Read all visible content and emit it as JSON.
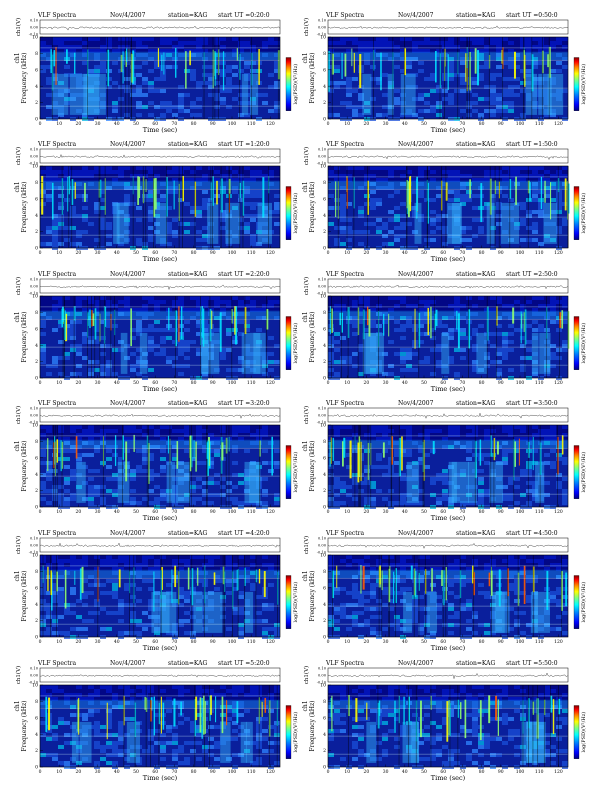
{
  "figure": {
    "app_title": "VLF Spectra",
    "date": "Nov/4/2007",
    "station": "station=KAG",
    "start_prefix": "start  UT =",
    "top_ylabel": "ch1(V)",
    "spec_ylabel": "Frequency (kHz)",
    "spec_ylabel_side": "ch1",
    "xlabel": "Time (sec)",
    "colorbar_label": "log(PSD)(V²/Hz)"
  },
  "chart_data": [
    {
      "type": "heatmap",
      "panel": 1,
      "start_ut": "0:20:0",
      "title": "VLF Spectra  Nov/4/2007  station=KAG  start UT =0:20:0",
      "xlabel": "Time (sec)",
      "ylabel": "Frequency (kHz)",
      "xlim": [
        0,
        125
      ],
      "ylim": [
        0,
        10
      ],
      "xticks": [
        0,
        10,
        20,
        30,
        40,
        50,
        60,
        70,
        80,
        90,
        100,
        110,
        120
      ],
      "yticks": [
        0,
        2,
        4,
        6,
        8,
        10
      ],
      "top_trace": {
        "ylabel": "ch1(V)",
        "yticks": [
          -0.1,
          0.0,
          0.1
        ]
      }
    },
    {
      "type": "heatmap",
      "panel": 2,
      "start_ut": "0:50:0",
      "title": "VLF Spectra  Nov/4/2007  station=KAG  start UT =0:50:0",
      "xlabel": "Time (sec)",
      "ylabel": "Frequency (kHz)",
      "xlim": [
        0,
        125
      ],
      "ylim": [
        0,
        10
      ],
      "xticks": [
        0,
        10,
        20,
        30,
        40,
        50,
        60,
        70,
        80,
        90,
        100,
        110,
        120
      ],
      "yticks": [
        0,
        2,
        4,
        6,
        8,
        10
      ],
      "top_trace": {
        "ylabel": "ch1(V)",
        "yticks": [
          -0.1,
          0.0,
          0.1
        ]
      }
    },
    {
      "type": "heatmap",
      "panel": 3,
      "start_ut": "1:20:0",
      "title": "VLF Spectra  Nov/4/2007  station=KAG  start UT =1:20:0",
      "xlabel": "Time (sec)",
      "ylabel": "Frequency (kHz)",
      "xlim": [
        0,
        125
      ],
      "ylim": [
        0,
        10
      ],
      "xticks": [
        0,
        10,
        20,
        30,
        40,
        50,
        60,
        70,
        80,
        90,
        100,
        110,
        120
      ],
      "yticks": [
        0,
        2,
        4,
        6,
        8,
        10
      ],
      "top_trace": {
        "ylabel": "ch1(V)",
        "yticks": [
          -0.1,
          0.0,
          0.1
        ]
      }
    },
    {
      "type": "heatmap",
      "panel": 4,
      "start_ut": "1:50:0",
      "title": "VLF Spectra  Nov/4/2007  station=KAG  start UT =1:50:0",
      "xlabel": "Time (sec)",
      "ylabel": "Frequency (kHz)",
      "xlim": [
        0,
        125
      ],
      "ylim": [
        0,
        10
      ],
      "xticks": [
        0,
        10,
        20,
        30,
        40,
        50,
        60,
        70,
        80,
        90,
        100,
        110,
        120
      ],
      "yticks": [
        0,
        2,
        4,
        6,
        8,
        10
      ],
      "top_trace": {
        "ylabel": "ch1(V)",
        "yticks": [
          -0.1,
          0.0,
          0.1
        ]
      }
    },
    {
      "type": "heatmap",
      "panel": 5,
      "start_ut": "2:20:0",
      "title": "VLF Spectra  Nov/4/2007  station=KAG  start UT =2:20:0",
      "xlabel": "Time (sec)",
      "ylabel": "Frequency (kHz)",
      "xlim": [
        0,
        125
      ],
      "ylim": [
        0,
        10
      ],
      "xticks": [
        0,
        10,
        20,
        30,
        40,
        50,
        60,
        70,
        80,
        90,
        100,
        110,
        120
      ],
      "yticks": [
        0,
        2,
        4,
        6,
        8,
        10
      ],
      "top_trace": {
        "ylabel": "ch1(V)",
        "yticks": [
          -0.1,
          0.0,
          0.1
        ]
      }
    },
    {
      "type": "heatmap",
      "panel": 6,
      "start_ut": "2:50:0",
      "title": "VLF Spectra  Nov/4/2007  station=KAG  start UT =2:50:0",
      "xlabel": "Time (sec)",
      "ylabel": "Frequency (kHz)",
      "xlim": [
        0,
        125
      ],
      "ylim": [
        0,
        10
      ],
      "xticks": [
        0,
        10,
        20,
        30,
        40,
        50,
        60,
        70,
        80,
        90,
        100,
        110,
        120
      ],
      "yticks": [
        0,
        2,
        4,
        6,
        8,
        10
      ],
      "top_trace": {
        "ylabel": "ch1(V)",
        "yticks": [
          -0.1,
          0.0,
          0.1
        ]
      }
    },
    {
      "type": "heatmap",
      "panel": 7,
      "start_ut": "3:20:0",
      "title": "VLF Spectra  Nov/4/2007  station=KAG  start UT =3:20:0",
      "xlabel": "Time (sec)",
      "ylabel": "Frequency (kHz)",
      "xlim": [
        0,
        125
      ],
      "ylim": [
        0,
        10
      ],
      "xticks": [
        0,
        10,
        20,
        30,
        40,
        50,
        60,
        70,
        80,
        90,
        100,
        110,
        120
      ],
      "yticks": [
        0,
        2,
        4,
        6,
        8,
        10
      ],
      "top_trace": {
        "ylabel": "ch1(V)",
        "yticks": [
          -0.1,
          0.0,
          0.1
        ]
      }
    },
    {
      "type": "heatmap",
      "panel": 8,
      "start_ut": "3:50:0",
      "title": "VLF Spectra  Nov/4/2007  station=KAG  start UT =3:50:0",
      "xlabel": "Time (sec)",
      "ylabel": "Frequency (kHz)",
      "xlim": [
        0,
        125
      ],
      "ylim": [
        0,
        10
      ],
      "xticks": [
        0,
        10,
        20,
        30,
        40,
        50,
        60,
        70,
        80,
        90,
        100,
        110,
        120
      ],
      "yticks": [
        0,
        2,
        4,
        6,
        8,
        10
      ],
      "top_trace": {
        "ylabel": "ch1(V)",
        "yticks": [
          -0.1,
          0.0,
          0.1
        ]
      }
    },
    {
      "type": "heatmap",
      "panel": 9,
      "start_ut": "4:20:0",
      "title": "VLF Spectra  Nov/4/2007  station=KAG  start UT =4:20:0",
      "xlabel": "Time (sec)",
      "ylabel": "Frequency (kHz)",
      "xlim": [
        0,
        125
      ],
      "ylim": [
        0,
        10
      ],
      "xticks": [
        0,
        10,
        20,
        30,
        40,
        50,
        60,
        70,
        80,
        90,
        100,
        110,
        120
      ],
      "yticks": [
        0,
        2,
        4,
        6,
        8,
        10
      ],
      "top_trace": {
        "ylabel": "ch1(V)",
        "yticks": [
          -0.1,
          0.0,
          0.1
        ]
      }
    },
    {
      "type": "heatmap",
      "panel": 10,
      "start_ut": "4:50:0",
      "title": "VLF Spectra  Nov/4/2007  station=KAG  start UT =4:50:0",
      "xlabel": "Time (sec)",
      "ylabel": "Frequency (kHz)",
      "xlim": [
        0,
        125
      ],
      "ylim": [
        0,
        10
      ],
      "xticks": [
        0,
        10,
        20,
        30,
        40,
        50,
        60,
        70,
        80,
        90,
        100,
        110,
        120
      ],
      "yticks": [
        0,
        2,
        4,
        6,
        8,
        10
      ],
      "top_trace": {
        "ylabel": "ch1(V)",
        "yticks": [
          -0.1,
          0.0,
          0.1
        ]
      }
    },
    {
      "type": "heatmap",
      "panel": 11,
      "start_ut": "5:20:0",
      "title": "VLF Spectra  Nov/4/2007  station=KAG  start UT =5:20:0",
      "xlabel": "Time (sec)",
      "ylabel": "Frequency (kHz)",
      "xlim": [
        0,
        125
      ],
      "ylim": [
        0,
        10
      ],
      "xticks": [
        0,
        10,
        20,
        30,
        40,
        50,
        60,
        70,
        80,
        90,
        100,
        110,
        120
      ],
      "yticks": [
        0,
        2,
        4,
        6,
        8,
        10
      ],
      "top_trace": {
        "ylabel": "ch1(V)",
        "yticks": [
          -0.1,
          0.0,
          0.1
        ]
      }
    },
    {
      "type": "heatmap",
      "panel": 12,
      "start_ut": "5:50:0",
      "title": "VLF Spectra  Nov/4/2007  station=KAG  start UT =5:50:0",
      "xlabel": "Time (sec)",
      "ylabel": "Frequency (kHz)",
      "xlim": [
        0,
        125
      ],
      "ylim": [
        0,
        10
      ],
      "xticks": [
        0,
        10,
        20,
        30,
        40,
        50,
        60,
        70,
        80,
        90,
        100,
        110,
        120
      ],
      "yticks": [
        0,
        2,
        4,
        6,
        8,
        10
      ],
      "top_trace": {
        "ylabel": "ch1(V)",
        "yticks": [
          -0.1,
          0.0,
          0.1
        ]
      }
    }
  ],
  "colormap": [
    "#00007f",
    "#0000ff",
    "#007fff",
    "#00ffff",
    "#7fff7f",
    "#ffff00",
    "#ff7f00",
    "#ff0000",
    "#7f0000"
  ]
}
